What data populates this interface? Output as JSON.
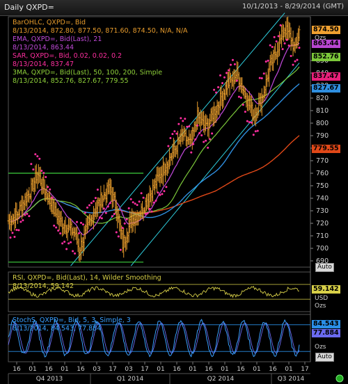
{
  "window": {
    "title": "Daily QXPD=",
    "date_range": "10/1/2013 - 8/29/2014 (GMT)"
  },
  "price_panel": {
    "legend": [
      {
        "text": "BarOHLC, QXPD=, Bid",
        "color": "#e69b2c"
      },
      {
        "text": "8/13/2014, 872.80, 877.50, 871.60, 874.50, N/A, N/A",
        "color": "#e69b2c"
      },
      {
        "text": "EMA, QXPD=, Bid(Last), 21",
        "color": "#c04ad8"
      },
      {
        "text": "8/13/2014, 863.44",
        "color": "#c04ad8"
      },
      {
        "text": "SAR, QXPD=, Bid,  0.02, 0.02, 0.2",
        "color": "#ff2fa0"
      },
      {
        "text": "8/13/2014, 837.47",
        "color": "#ff2fa0"
      },
      {
        "text": "3MA, QXPD=, Bid(Last),  50, 100, 200, Simple",
        "color": "#8fd13a"
      },
      {
        "text": "8/13/2014, 852.76, 827.67, 779.55",
        "color": "#8fd13a"
      }
    ],
    "last_values": [
      {
        "label": "874.50",
        "value": 874.5,
        "bg": "#f0a030"
      },
      {
        "label": "863.44",
        "value": 863.44,
        "bg": "#b846d0"
      },
      {
        "label": "852.76",
        "value": 852.76,
        "bg": "#7cc83a"
      },
      {
        "label": "837.47",
        "value": 837.47,
        "bg": "#e8207a"
      },
      {
        "label": "827.67",
        "value": 827.67,
        "bg": "#2f8fe0"
      },
      {
        "label": "779.55",
        "value": 779.55,
        "bg": "#e04818"
      }
    ],
    "unit_label": "Ozs",
    "auto_label": "Auto"
  },
  "rsi_panel": {
    "legend": [
      {
        "text": "RSI, QXPD=, Bid(Last),  14, Wilder Smoothing",
        "color": "#d8d048"
      },
      {
        "text": "8/13/2014, 59.142",
        "color": "#d8d048"
      }
    ],
    "last_value": {
      "label": "59.142",
      "bg": "#d8d048"
    },
    "unit_labels": [
      "USD",
      "Ozs"
    ]
  },
  "stoch_panel": {
    "legend": [
      {
        "text": "StochS, QXPD=, Bid,  5, 3, Simple, 3",
        "color": "#3aa0ff"
      },
      {
        "text": "8/13/2014, 84.543, 77.884",
        "color": "#3aa0ff"
      }
    ],
    "last_values": [
      {
        "label": "84.543",
        "bg": "#2a8fe8"
      },
      {
        "label": "77.884",
        "bg": "#6a6af0"
      }
    ],
    "unit_label": "Ozs",
    "auto_label": "Auto"
  },
  "x_axis": {
    "day_ticks": [
      "16",
      "01",
      "16",
      "01",
      "16",
      "03",
      "17",
      "03",
      "17",
      "01",
      "16",
      "01",
      "16",
      "01",
      "16",
      "01",
      "16",
      "01",
      "17"
    ],
    "quarters": [
      "Q4 2013",
      "Q1 2014",
      "Q2 2014",
      "Q3 2014"
    ]
  },
  "chart_data": {
    "type": "ohlc",
    "title": "Daily QXPD=",
    "y_ticks": [
      690,
      700,
      710,
      720,
      730,
      740,
      750,
      760,
      770,
      780,
      790,
      800,
      810,
      820,
      830,
      840,
      850
    ],
    "ylim": [
      685,
      885
    ],
    "close_path": [
      [
        0,
        722
      ],
      [
        8,
        726
      ],
      [
        15,
        738
      ],
      [
        22,
        747
      ],
      [
        28,
        760
      ],
      [
        35,
        746
      ],
      [
        42,
        734
      ],
      [
        50,
        721
      ],
      [
        58,
        716
      ],
      [
        64,
        712
      ],
      [
        68,
        699
      ],
      [
        76,
        715
      ],
      [
        84,
        732
      ],
      [
        92,
        742
      ],
      [
        98,
        748
      ],
      [
        104,
        732
      ],
      [
        110,
        703
      ],
      [
        118,
        722
      ],
      [
        128,
        730
      ],
      [
        138,
        746
      ],
      [
        148,
        762
      ],
      [
        158,
        776
      ],
      [
        168,
        790
      ],
      [
        175,
        783
      ],
      [
        182,
        805
      ],
      [
        190,
        796
      ],
      [
        200,
        812
      ],
      [
        210,
        830
      ],
      [
        220,
        840
      ],
      [
        228,
        823
      ],
      [
        236,
        806
      ],
      [
        244,
        820
      ],
      [
        252,
        845
      ],
      [
        260,
        862
      ],
      [
        266,
        876
      ],
      [
        272,
        868
      ],
      [
        276,
        858
      ],
      [
        280,
        874
      ]
    ],
    "trend_lines": [
      {
        "from": [
          0,
          760
        ],
        "to": [
          130,
          760
        ],
        "color": "#3ed13e"
      },
      {
        "from": [
          0,
          689
        ],
        "to": [
          130,
          689
        ],
        "color": "#3ed13e"
      }
    ],
    "series_meta": [
      "BarOHLC",
      "EMA 21",
      "SAR",
      "MA 50",
      "MA 100",
      "MA 200"
    ]
  }
}
